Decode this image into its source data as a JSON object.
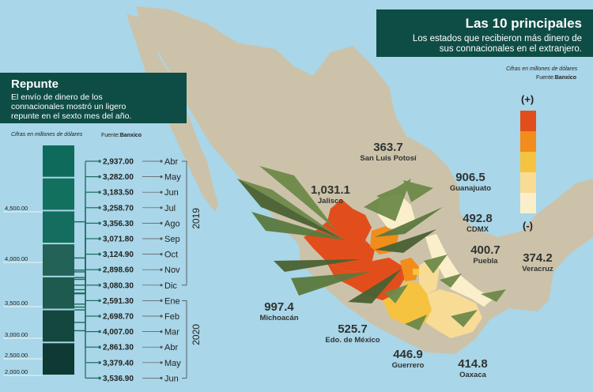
{
  "top_banner": {
    "title": "Las 10 principales",
    "subtitle": "Los estados que recibieron más dinero de sus connacionales en el extranjero."
  },
  "legend": {
    "note": "Cifras en millones de dólares",
    "source_prefix": "Fuente:",
    "source_name": "Banxico",
    "plus": "(+)",
    "minus": "(-)",
    "colors": [
      "#e24e1b",
      "#f28c1a",
      "#f5c33f",
      "#f8dc95",
      "#fbefcb"
    ]
  },
  "left_banner": {
    "title": "Repunte",
    "subtitle": "El envío de dinero de los connacionales mostró un ligero repunte en el sexto mes del año."
  },
  "chart_note": "Cifras en millones de dólares",
  "chart_source_prefix": "Fuente:",
  "chart_source_name": "Banxico",
  "chart_data": {
    "type": "bar",
    "ylim": [
      2000,
      5000
    ],
    "axis_ticks": [
      "4,500.00",
      "4,000.00",
      "3,500.00",
      "3,000.00",
      "2,500.00",
      "2,000.00"
    ],
    "years": [
      "2019",
      "2020"
    ],
    "categories": [
      "Abr",
      "May",
      "Jun",
      "Jul",
      "Ago",
      "Sep",
      "Oct",
      "Nov",
      "Dic",
      "Ene",
      "Feb",
      "Mar",
      "Abr",
      "May",
      "Jun"
    ],
    "labels": [
      "2,937.00",
      "3,282.00",
      "3,183.50",
      "3,258.70",
      "3,356.30",
      "3,071.80",
      "3,124.90",
      "2,898.60",
      "3,080.30",
      "2,591.30",
      "2,698.70",
      "4,007.00",
      "2,861.30",
      "3,379.40",
      "3,536.90"
    ],
    "values": [
      2937.0,
      3282.0,
      3183.5,
      3258.7,
      3356.3,
      3071.8,
      3124.9,
      2898.6,
      3080.3,
      2591.3,
      2698.7,
      4007.0,
      2861.3,
      3379.4,
      3536.9
    ]
  },
  "states": [
    {
      "id": "jalisco",
      "value": "1,031.1",
      "name": "Jalisco"
    },
    {
      "id": "michoacan",
      "value": "997.4",
      "name": "Michoacán"
    },
    {
      "id": "guanajuato",
      "value": "906.5",
      "name": "Guanajuato"
    },
    {
      "id": "edomex",
      "value": "525.7",
      "name": "Edo. de México"
    },
    {
      "id": "cdmx",
      "value": "492.8",
      "name": "CDMX"
    },
    {
      "id": "guerrero",
      "value": "446.9",
      "name": "Guerrero"
    },
    {
      "id": "oaxaca",
      "value": "414.8",
      "name": "Oaxaca"
    },
    {
      "id": "puebla",
      "value": "400.7",
      "name": "Puebla"
    },
    {
      "id": "veracruz",
      "value": "374.2",
      "name": "Veracruz"
    },
    {
      "id": "slp",
      "value": "363.7",
      "name": "San Luis Potosí"
    }
  ]
}
